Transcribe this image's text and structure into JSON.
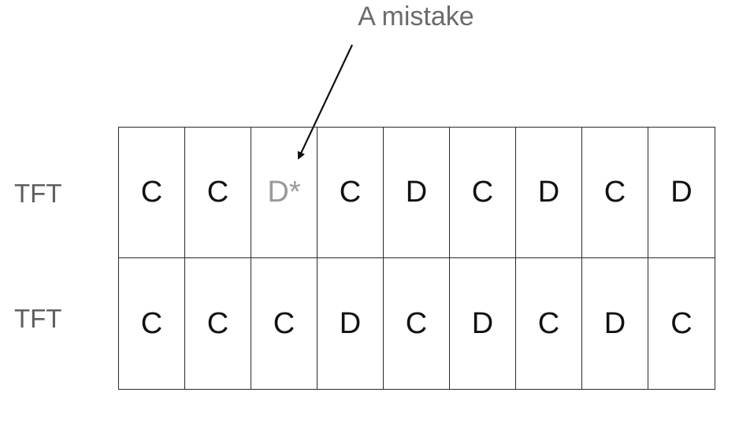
{
  "annotation": {
    "text": "A mistake"
  },
  "rows": [
    {
      "label": "TFT",
      "moves": [
        "C",
        "C",
        "D*",
        "C",
        "D",
        "C",
        "D",
        "C",
        "D"
      ]
    },
    {
      "label": "TFT",
      "moves": [
        "C",
        "C",
        "C",
        "D",
        "C",
        "D",
        "C",
        "D",
        "C"
      ]
    }
  ],
  "highlight": {
    "row": 0,
    "column": 2,
    "color": "#9a9a9a"
  },
  "colors": {
    "text": "#111111",
    "label": "#5f5f5f",
    "annotation": "#6b6b6b",
    "border": "#2a2a2a"
  }
}
